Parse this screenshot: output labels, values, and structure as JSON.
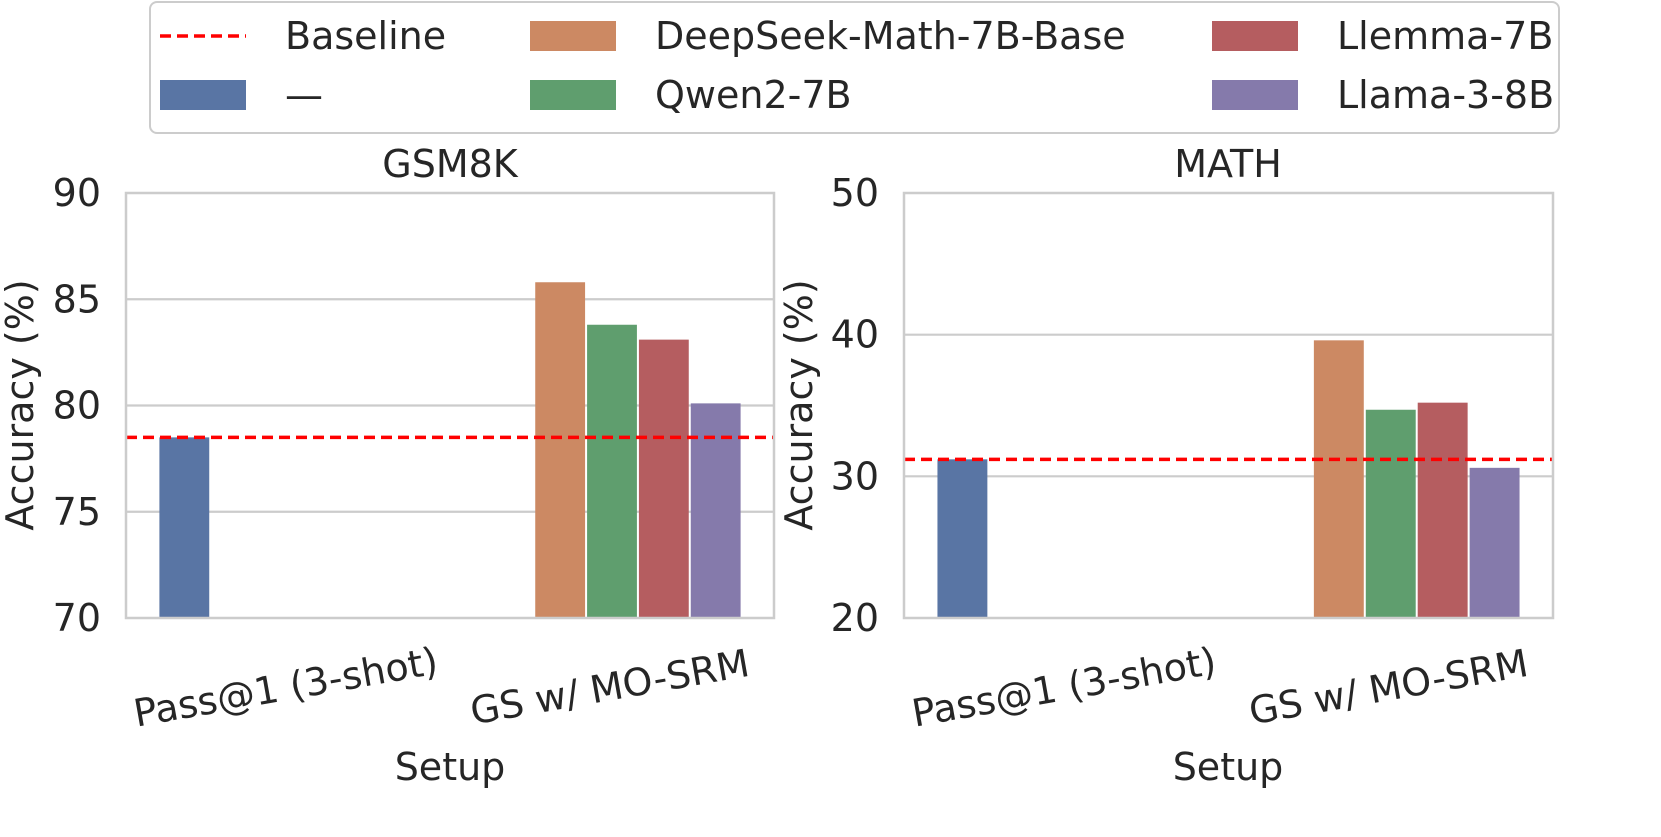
{
  "legend": {
    "entries": [
      {
        "label": "Baseline",
        "kind": "line",
        "color": "#ff0000"
      },
      {
        "label": "DeepSeek-Math-7B-Base",
        "kind": "patch",
        "color": "#cc8963"
      },
      {
        "label": "Llemma-7B",
        "kind": "patch",
        "color": "#b55d60"
      },
      {
        "label": "—",
        "kind": "patch",
        "color": "#5975a4"
      },
      {
        "label": "Qwen2-7B",
        "kind": "patch",
        "color": "#5f9e6e"
      },
      {
        "label": "Llama-3-8B",
        "kind": "patch",
        "color": "#857aab"
      }
    ]
  },
  "chart_data": [
    {
      "type": "bar",
      "title": "GSM8K",
      "xlabel": "Setup",
      "ylabel": "Accuracy (%)",
      "ylim": [
        70,
        90
      ],
      "yticks": [
        70,
        75,
        80,
        85,
        90
      ],
      "categories": [
        "Pass@1 (3-shot)",
        "GS w/ MO-SRM"
      ],
      "series": [
        {
          "name": "—",
          "color": "#5975a4",
          "values": [
            78.5,
            null
          ]
        },
        {
          "name": "DeepSeek-Math-7B-Base",
          "color": "#cc8963",
          "values": [
            null,
            85.8
          ]
        },
        {
          "name": "Qwen2-7B",
          "color": "#5f9e6e",
          "values": [
            null,
            83.8
          ]
        },
        {
          "name": "Llemma-7B",
          "color": "#b55d60",
          "values": [
            null,
            83.1
          ]
        },
        {
          "name": "Llama-3-8B",
          "color": "#857aab",
          "values": [
            null,
            80.1
          ]
        }
      ],
      "baseline": 78.5
    },
    {
      "type": "bar",
      "title": "MATH",
      "xlabel": "Setup",
      "ylabel": "Accuracy (%)",
      "ylim": [
        20,
        50
      ],
      "yticks": [
        20,
        30,
        40,
        50
      ],
      "categories": [
        "Pass@1 (3-shot)",
        "GS w/ MO-SRM"
      ],
      "series": [
        {
          "name": "—",
          "color": "#5975a4",
          "values": [
            31.2,
            null
          ]
        },
        {
          "name": "DeepSeek-Math-7B-Base",
          "color": "#cc8963",
          "values": [
            null,
            39.6
          ]
        },
        {
          "name": "Qwen2-7B",
          "color": "#5f9e6e",
          "values": [
            null,
            34.7
          ]
        },
        {
          "name": "Llemma-7B",
          "color": "#b55d60",
          "values": [
            null,
            35.2
          ]
        },
        {
          "name": "Llama-3-8B",
          "color": "#857aab",
          "values": [
            null,
            30.6
          ]
        }
      ],
      "baseline": 31.2
    }
  ]
}
